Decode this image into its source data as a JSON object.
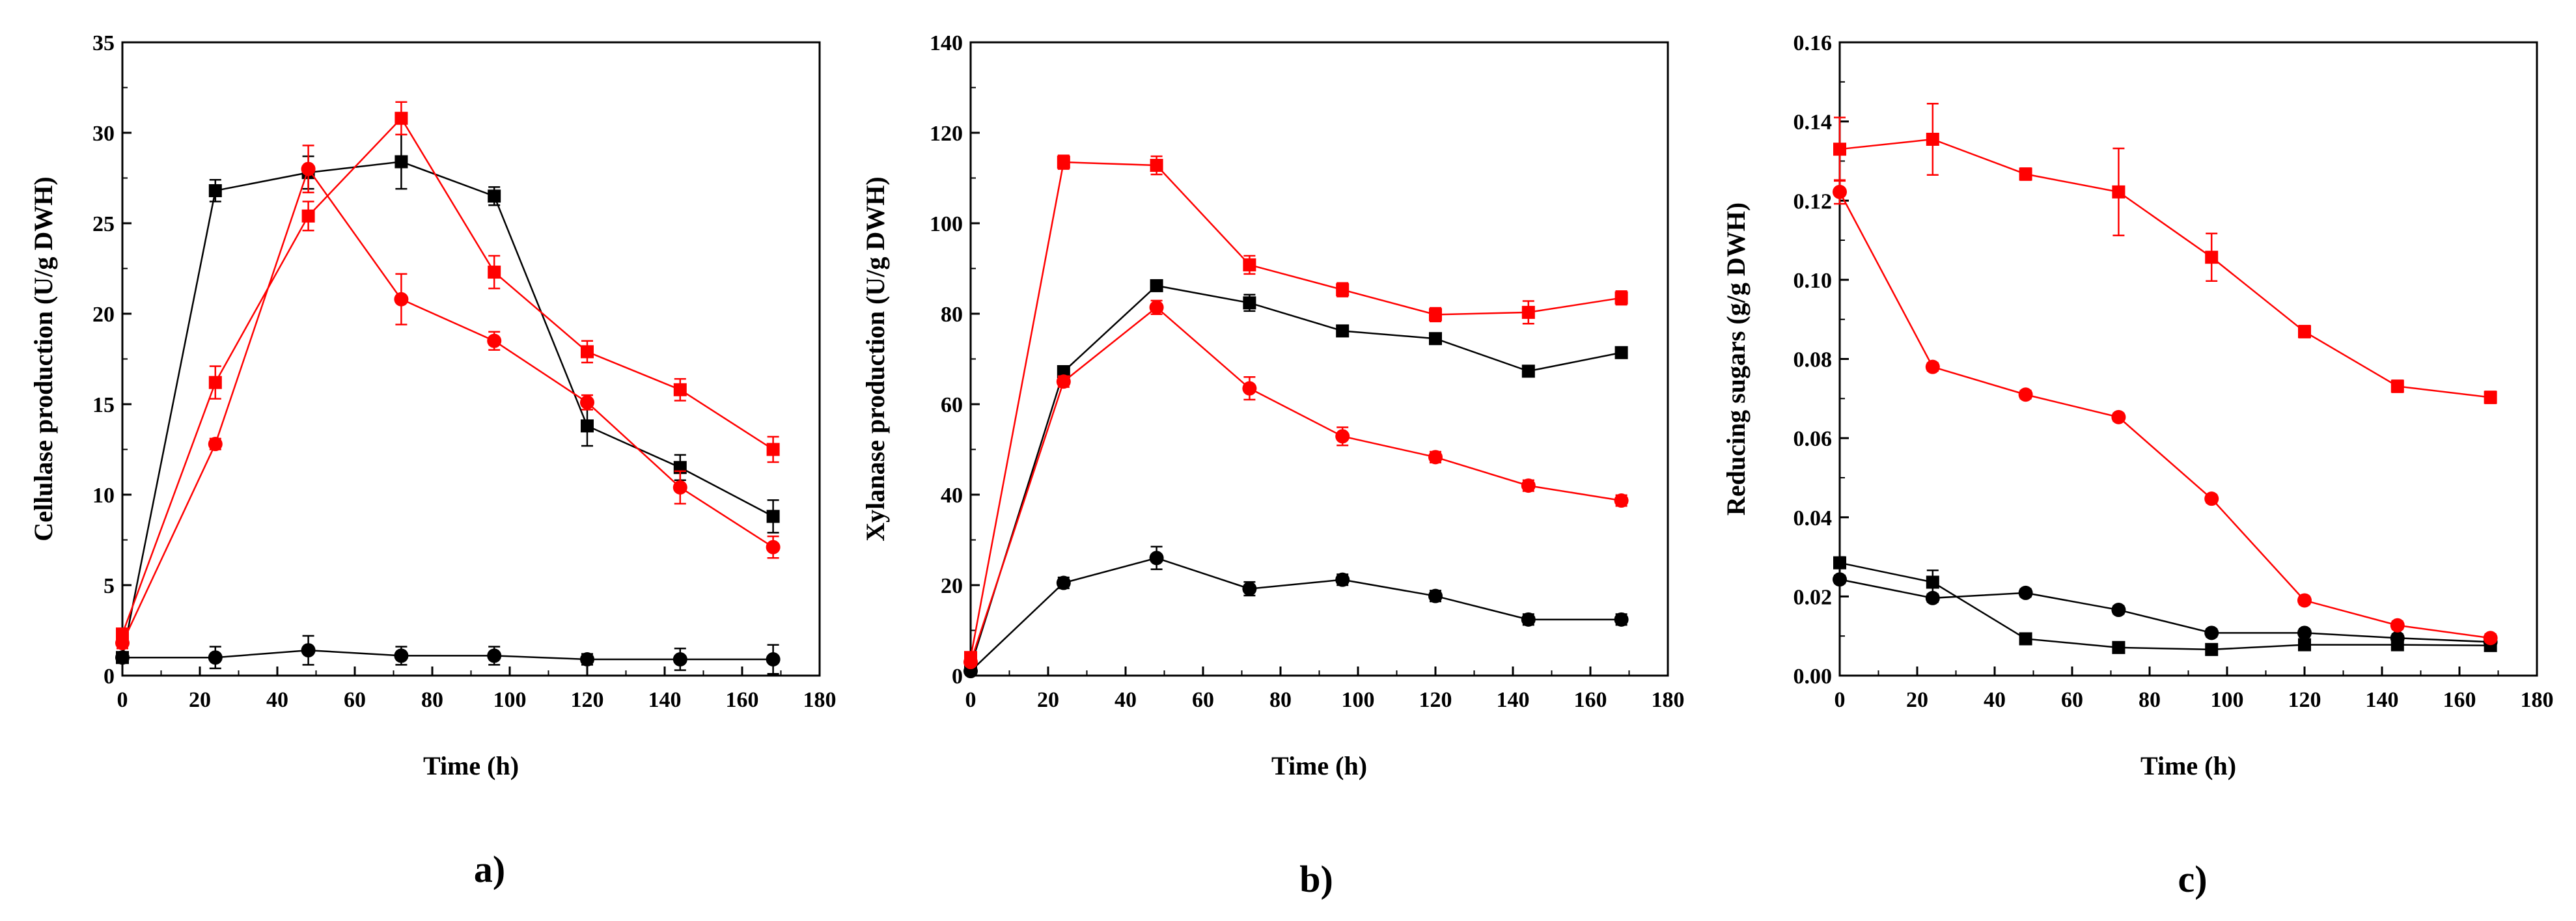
{
  "colors": {
    "black": "#000000",
    "red": "#ff0000"
  },
  "chart_data": [
    {
      "type": "line",
      "panel_label": "a)",
      "xlabel": "Time (h)",
      "ylabel": "Cellulase production (U/g DWH)",
      "xlim": [
        0,
        180
      ],
      "ylim": [
        0,
        35
      ],
      "xticks": [
        0,
        20,
        40,
        60,
        80,
        100,
        120,
        140,
        160,
        180
      ],
      "yticks": [
        0,
        5,
        10,
        15,
        20,
        25,
        30,
        35
      ],
      "xtick_labels": [
        "0",
        "20",
        "40",
        "60",
        "80",
        "100",
        "120",
        "140",
        "160",
        "180"
      ],
      "ytick_labels": [
        "0",
        "5",
        "10",
        "15",
        "20",
        "25",
        "30",
        "35"
      ],
      "x": [
        0,
        24,
        48,
        72,
        96,
        120,
        144,
        168
      ],
      "series": [
        {
          "name": "black-square",
          "color": "#000000",
          "marker": "square",
          "values": [
            1.0,
            26.8,
            27.8,
            28.4,
            26.5,
            13.8,
            11.5,
            8.8
          ],
          "errors": [
            0.3,
            0.6,
            0.9,
            1.5,
            0.5,
            1.1,
            0.7,
            0.9
          ]
        },
        {
          "name": "black-circle",
          "color": "#000000",
          "marker": "circle",
          "values": [
            1.0,
            1.0,
            1.4,
            1.1,
            1.1,
            0.9,
            0.9,
            0.9
          ],
          "errors": [
            0.3,
            0.6,
            0.8,
            0.5,
            0.5,
            0.3,
            0.6,
            0.8
          ]
        },
        {
          "name": "red-square",
          "color": "#ff0000",
          "marker": "square",
          "values": [
            2.3,
            16.2,
            25.4,
            30.8,
            22.3,
            17.9,
            15.8,
            12.5
          ],
          "errors": [
            0.3,
            0.9,
            0.8,
            0.9,
            0.9,
            0.6,
            0.6,
            0.7
          ]
        },
        {
          "name": "red-circle",
          "color": "#ff0000",
          "marker": "circle",
          "values": [
            1.8,
            12.8,
            28.0,
            20.8,
            18.5,
            15.1,
            10.4,
            7.1
          ],
          "errors": [
            0.3,
            0.3,
            1.3,
            1.4,
            0.5,
            0.4,
            0.9,
            0.6
          ]
        }
      ]
    },
    {
      "type": "line",
      "panel_label": "b)",
      "xlabel": "Time (h)",
      "ylabel": "Xylanase production (U/g DWH)",
      "xlim": [
        0,
        180
      ],
      "ylim": [
        0,
        140
      ],
      "xticks": [
        0,
        20,
        40,
        60,
        80,
        100,
        120,
        140,
        160,
        180
      ],
      "yticks": [
        0,
        20,
        40,
        60,
        80,
        100,
        120,
        140
      ],
      "xtick_labels": [
        "0",
        "20",
        "40",
        "60",
        "80",
        "100",
        "120",
        "140",
        "160",
        "180"
      ],
      "ytick_labels": [
        "0",
        "20",
        "40",
        "60",
        "80",
        "100",
        "120",
        "140"
      ],
      "x": [
        0,
        24,
        48,
        72,
        96,
        120,
        144,
        168
      ],
      "series": [
        {
          "name": "black-square",
          "color": "#000000",
          "marker": "square",
          "values": [
            2,
            67.2,
            86.2,
            82.4,
            76.2,
            74.5,
            67.3,
            71.4
          ],
          "errors": [
            0.5,
            1.2,
            1.2,
            1.8,
            1.2,
            1.2,
            1.2,
            1.2
          ]
        },
        {
          "name": "black-circle",
          "color": "#000000",
          "marker": "circle",
          "values": [
            1,
            20.5,
            26.0,
            19.2,
            21.2,
            17.6,
            12.4,
            12.4
          ],
          "errors": [
            0.5,
            1.2,
            2.5,
            1.5,
            1.2,
            1.2,
            1.2,
            1.2
          ]
        },
        {
          "name": "red-square",
          "color": "#ff0000",
          "marker": "square",
          "values": [
            4,
            113.5,
            112.8,
            90.8,
            85.3,
            79.8,
            80.3,
            83.5
          ],
          "errors": [
            0.5,
            1.5,
            2.0,
            2.0,
            1.5,
            1.5,
            2.5,
            1.5
          ]
        },
        {
          "name": "red-circle",
          "color": "#ff0000",
          "marker": "circle",
          "values": [
            3,
            65.0,
            81.4,
            63.5,
            52.9,
            48.3,
            42.0,
            38.7
          ],
          "errors": [
            0.5,
            1.2,
            1.5,
            2.5,
            2.0,
            1.2,
            1.2,
            1.2
          ]
        }
      ]
    },
    {
      "type": "line",
      "panel_label": "c)",
      "xlabel": "Time (h)",
      "ylabel": "Reducing sugars (g/g DWH)",
      "xlim": [
        0,
        180
      ],
      "ylim": [
        0,
        0.16
      ],
      "xticks": [
        0,
        20,
        40,
        60,
        80,
        100,
        120,
        140,
        160,
        180
      ],
      "yticks": [
        0,
        0.02,
        0.04,
        0.06,
        0.08,
        0.1,
        0.12,
        0.14,
        0.16
      ],
      "xtick_labels": [
        "0",
        "20",
        "40",
        "60",
        "80",
        "100",
        "120",
        "140",
        "160",
        "180"
      ],
      "ytick_labels": [
        "0.00",
        "0.02",
        "0.04",
        "0.06",
        "0.08",
        "0.10",
        "0.12",
        "0.14",
        "0.16"
      ],
      "x": [
        0,
        24,
        48,
        72,
        96,
        120,
        144,
        168
      ],
      "series": [
        {
          "name": "black-square",
          "color": "#000000",
          "marker": "square",
          "values": [
            0.0285,
            0.0236,
            0.0093,
            0.0071,
            0.0066,
            0.0078,
            0.0078,
            0.0076
          ],
          "errors": [
            0.001,
            0.003,
            0.001,
            0.001,
            0.001,
            0.001,
            0.001,
            0.001
          ]
        },
        {
          "name": "black-circle",
          "color": "#000000",
          "marker": "circle",
          "values": [
            0.0243,
            0.0196,
            0.0209,
            0.0166,
            0.0108,
            0.0108,
            0.0095,
            0.0085
          ],
          "errors": [
            0.001,
            0.001,
            0.001,
            0.001,
            0.001,
            0.001,
            0.001,
            0.001
          ]
        },
        {
          "name": "red-square",
          "color": "#ff0000",
          "marker": "square",
          "values": [
            0.133,
            0.1355,
            0.1267,
            0.1222,
            0.1057,
            0.0869,
            0.0731,
            0.0703
          ],
          "errors": [
            0.008,
            0.009,
            0.0015,
            0.011,
            0.006,
            0.0015,
            0.0015,
            0.0015
          ]
        },
        {
          "name": "red-circle",
          "color": "#ff0000",
          "marker": "circle",
          "values": [
            0.1222,
            0.078,
            0.071,
            0.0653,
            0.0447,
            0.019,
            0.0127,
            0.0095
          ],
          "errors": [
            0.003,
            0.001,
            0.001,
            0.001,
            0.001,
            0.001,
            0.001,
            0.001
          ]
        }
      ]
    }
  ]
}
